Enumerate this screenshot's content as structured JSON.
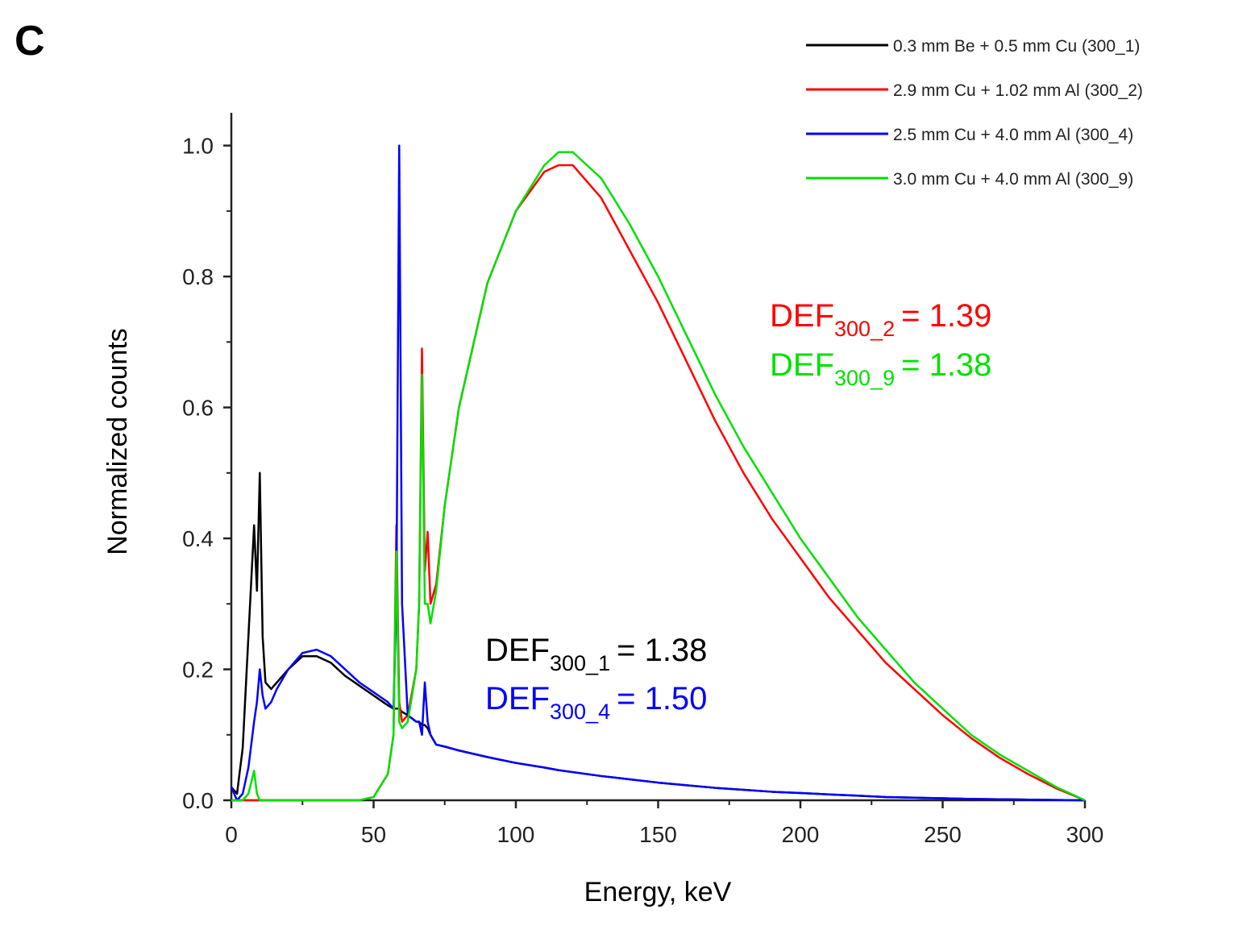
{
  "chart_data": {
    "type": "line",
    "panel_label": "C",
    "xlabel": "Energy, keV",
    "ylabel": "Normalized counts",
    "xlim": [
      0,
      300
    ],
    "ylim": [
      0,
      1.05
    ],
    "xticks": [
      0,
      50,
      100,
      150,
      200,
      250,
      300
    ],
    "xticks_minor": [
      25,
      75,
      125,
      175,
      225,
      275
    ],
    "yticks": [
      {
        "value": 0,
        "label": "0.0"
      },
      0.2,
      0.4,
      0.6,
      0.8,
      {
        "value": 1,
        "label": "1.0"
      }
    ],
    "yticks_minor": [
      0.1,
      0.3,
      0.5,
      0.7,
      0.9
    ],
    "legend": "upper right",
    "x": [
      0,
      2,
      4,
      6,
      8,
      9,
      10,
      11,
      12,
      14,
      16,
      20,
      25,
      30,
      35,
      40,
      45,
      50,
      55,
      57,
      58,
      59,
      60,
      62,
      65,
      66,
      67,
      68,
      69,
      70,
      72,
      75,
      80,
      90,
      100,
      110,
      115,
      120,
      130,
      140,
      150,
      160,
      170,
      180,
      190,
      200,
      210,
      220,
      230,
      240,
      250,
      260,
      270,
      280,
      290,
      300
    ],
    "series": [
      {
        "name": "0.3 mm Be + 0.5 mm Cu (300_1)",
        "color": "#000000",
        "values": [
          0.02,
          0.01,
          0.08,
          0.25,
          0.42,
          0.32,
          0.5,
          0.25,
          0.18,
          0.17,
          0.18,
          0.2,
          0.22,
          0.22,
          0.21,
          0.19,
          0.175,
          0.16,
          0.145,
          0.14,
          0.14,
          0.14,
          0.135,
          0.13,
          0.12,
          0.12,
          0.115,
          0.115,
          0.11,
          0.1,
          0.085,
          0.082,
          0.076,
          0.066,
          0.057,
          0.05,
          0.046,
          0.043,
          0.037,
          0.032,
          0.027,
          0.023,
          0.019,
          0.016,
          0.013,
          0.011,
          0.009,
          0.007,
          0.005,
          0.004,
          0.003,
          0.002,
          0.0015,
          0.001,
          0.0005,
          0
        ]
      },
      {
        "name": "2.9 mm Cu + 1.02 mm Al (300_2)",
        "color": "#ff0000",
        "values": [
          0,
          0,
          0,
          0,
          0,
          0,
          0,
          0,
          0,
          0,
          0,
          0,
          0,
          0,
          0,
          0,
          0,
          0.005,
          0.04,
          0.1,
          0.42,
          0.15,
          0.12,
          0.13,
          0.2,
          0.3,
          0.69,
          0.35,
          0.41,
          0.3,
          0.33,
          0.45,
          0.6,
          0.79,
          0.9,
          0.96,
          0.97,
          0.97,
          0.92,
          0.84,
          0.76,
          0.67,
          0.58,
          0.5,
          0.43,
          0.37,
          0.31,
          0.26,
          0.21,
          0.17,
          0.13,
          0.095,
          0.065,
          0.04,
          0.018,
          0
        ]
      },
      {
        "name": "2.5 mm Cu + 4.0 mm Al (300_4)",
        "color": "#0000ff",
        "values": [
          0.02,
          0,
          0.01,
          0.05,
          0.12,
          0.15,
          0.2,
          0.16,
          0.14,
          0.15,
          0.17,
          0.2,
          0.225,
          0.23,
          0.22,
          0.2,
          0.18,
          0.165,
          0.15,
          0.14,
          0.3,
          1.0,
          0.3,
          0.13,
          0.12,
          0.12,
          0.1,
          0.18,
          0.12,
          0.1,
          0.085,
          0.082,
          0.076,
          0.066,
          0.057,
          0.05,
          0.046,
          0.043,
          0.037,
          0.032,
          0.027,
          0.023,
          0.019,
          0.016,
          0.013,
          0.011,
          0.009,
          0.007,
          0.005,
          0.004,
          0.003,
          0.002,
          0.0015,
          0.001,
          0.0005,
          0
        ]
      },
      {
        "name": "3.0 mm Cu + 4.0 mm Al (300_9)",
        "color": "#00e000",
        "values": [
          0,
          0,
          0,
          0.01,
          0.045,
          0.01,
          0,
          0,
          0,
          0,
          0,
          0,
          0,
          0,
          0,
          0,
          0,
          0.005,
          0.04,
          0.1,
          0.38,
          0.12,
          0.11,
          0.12,
          0.2,
          0.3,
          0.65,
          0.3,
          0.3,
          0.27,
          0.32,
          0.45,
          0.6,
          0.79,
          0.9,
          0.97,
          0.99,
          0.99,
          0.95,
          0.88,
          0.8,
          0.71,
          0.62,
          0.54,
          0.47,
          0.4,
          0.34,
          0.28,
          0.23,
          0.18,
          0.14,
          0.1,
          0.07,
          0.045,
          0.02,
          0
        ]
      }
    ],
    "annotations": [
      {
        "text": "DEF",
        "sub": "300_2",
        "rest": "= 1.39",
        "color": "#ff0000"
      },
      {
        "text": "DEF",
        "sub": "300_9",
        "rest": "= 1.38",
        "color": "#00e000"
      },
      {
        "text": "DEF",
        "sub": "300_1",
        "rest": "= 1.38",
        "color": "#000000"
      },
      {
        "text": "DEF",
        "sub": "300_4",
        "rest": "= 1.50",
        "color": "#0000ff"
      }
    ]
  }
}
